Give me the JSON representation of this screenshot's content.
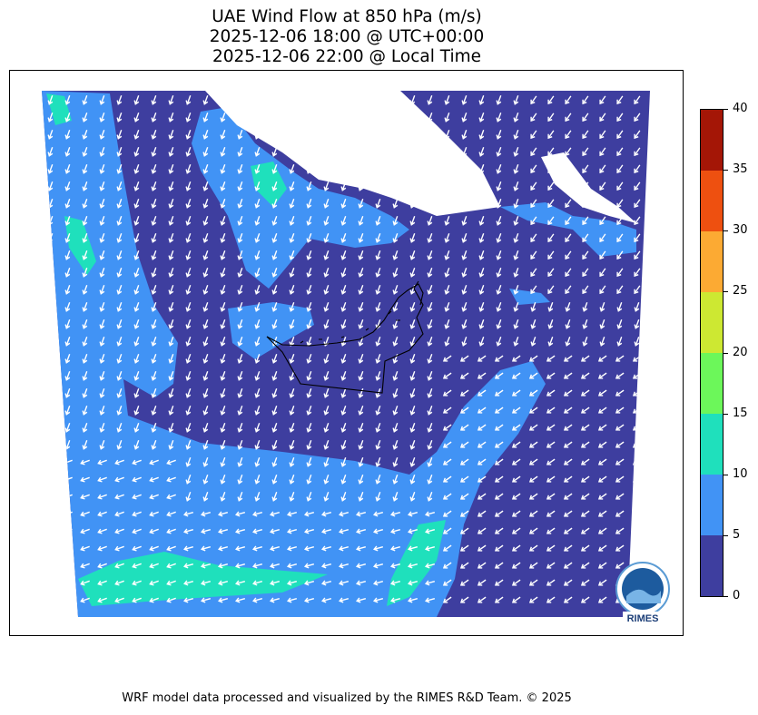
{
  "title": {
    "line1": "UAE Wind Flow at 850 hPa (m/s)",
    "line2": "2025-12-06 18:00 @ UTC+00:00",
    "line3": "2025-12-06 22:00 @ Local Time"
  },
  "colorbar": {
    "levels": [
      0,
      5,
      10,
      15,
      20,
      25,
      30,
      35,
      40
    ],
    "labels": [
      "0",
      "5",
      "10",
      "15",
      "20",
      "25",
      "30",
      "35",
      "40"
    ],
    "colors": [
      "#3e3e9f",
      "#4193f5",
      "#1fe0bc",
      "#6cf75a",
      "#cde832",
      "#fcaa33",
      "#ee5010",
      "#a41606"
    ]
  },
  "map": {
    "wind_field_dominant_direction": "from north-northeast",
    "arrow_color": "#ffffff",
    "boundary_color": "#000000",
    "no_data_color": "#ffffff"
  },
  "logo": {
    "text": "RIMES",
    "icon": "rimes-logo-icon"
  },
  "footer": "WRF model data processed and visualized by the RIMES R&D Team. © 2025"
}
